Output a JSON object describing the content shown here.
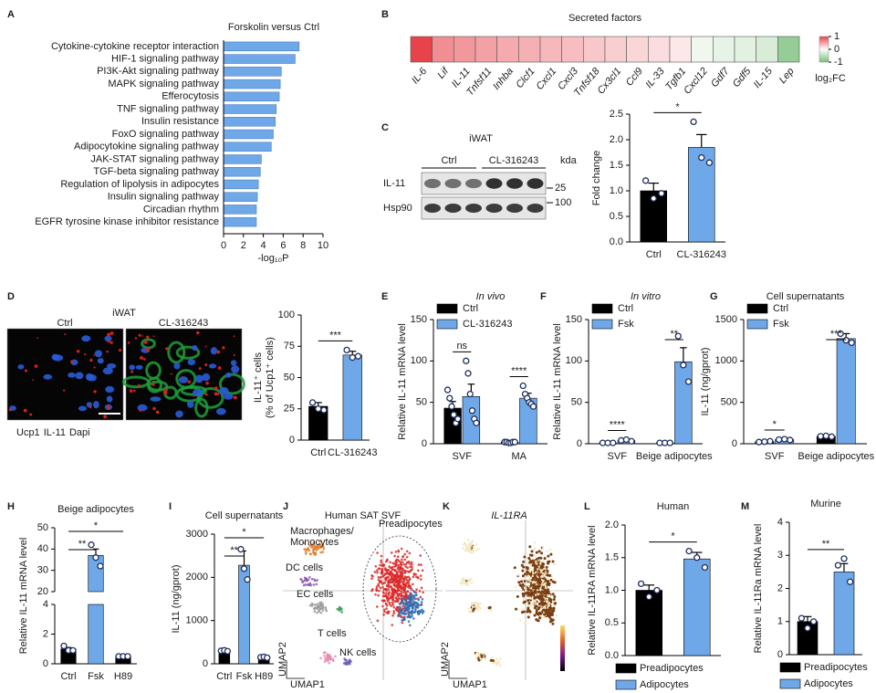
{
  "chart_data": [
    {
      "panel": "A",
      "type": "hbar",
      "title": "Forskolin versus Ctrl",
      "categories": [
        "Cytokine-cytokine receptor interaction",
        "HIF-1 signaling pathway",
        "PI3K-Akt signaling pathway",
        "MAPK signaling pathway",
        "Efferocytosis",
        "TNF signaling pathway",
        "Insulin resistance",
        "FoxO signaling pathway",
        "Adipocytokine signaling pathway",
        "JAK-STAT signaling pathway",
        "TGF-beta signaling pathway",
        "Regulation of lipolysis in adipocytes",
        "Insulin signaling pathway",
        "Circadian rhythm",
        "EGFR tyrosine kinase inhibitor resistance"
      ],
      "values": [
        7.6,
        7.2,
        5.8,
        5.7,
        5.6,
        5.3,
        5.2,
        5.0,
        4.8,
        3.8,
        3.7,
        3.5,
        3.4,
        3.3,
        3.3
      ],
      "color": "#6fa8e8",
      "label_colors": [
        "#e3211c",
        "#1a1a1a",
        "#1a1a1a",
        "#1a1a1a",
        "#1a1a1a",
        "#1a1a1a",
        "#1a1a1a",
        "#1a1a1a",
        "#1a1a1a",
        "#1a1a1a",
        "#1a1a1a",
        "#1a1a1a",
        "#1a1a1a",
        "#1a1a1a",
        "#1a1a1a"
      ],
      "xlabel": "-log₁₀P",
      "xlim": [
        0,
        10
      ],
      "xticks": [
        0,
        2,
        4,
        6,
        8,
        10
      ]
    },
    {
      "panel": "B",
      "type": "heatmap",
      "title": "Secreted factors",
      "categories": [
        "IL-6",
        "Lif",
        "IL-11",
        "Tnfsf11",
        "Inhba",
        "Clcf1",
        "Cxcl1",
        "Cxcl3",
        "Tnfsf18",
        "Cx3cl1",
        "Ccl9",
        "IL-33",
        "Tgfb1",
        "Cxcl12",
        "Gdf7",
        "Gdf5",
        "IL-15",
        "Lep"
      ],
      "values": [
        1.0,
        0.6,
        0.55,
        0.5,
        0.45,
        0.42,
        0.38,
        0.35,
        0.3,
        0.26,
        0.22,
        0.18,
        0.12,
        -0.12,
        -0.18,
        -0.22,
        -0.3,
        -0.8
      ],
      "label_colors": [
        "#1a1a1a",
        "#1a1a1a",
        "#e3211c",
        "#1a1a1a",
        "#1a1a1a",
        "#1a1a1a",
        "#1a1a1a",
        "#1a1a1a",
        "#1a1a1a",
        "#1a1a1a",
        "#1a1a1a",
        "#1a1a1a",
        "#1a1a1a",
        "#1a1a1a",
        "#1a1a1a",
        "#1a1a1a",
        "#1a1a1a",
        "#1a1a1a"
      ],
      "colors": [
        "#7cbf7a",
        "#ffffff",
        "#e8434b"
      ],
      "clim": [
        -1,
        1
      ],
      "cticks": [
        1,
        0,
        -1
      ],
      "colorbar_label": "log₂FC"
    },
    {
      "panel": "C",
      "type": "bar",
      "blot": {
        "title": "iWAT",
        "groups": [
          "Ctrl",
          "CL-316243"
        ],
        "unit": "kda",
        "rows": [
          "IL-11",
          "Hsp90"
        ],
        "markers": [
          25,
          100
        ]
      },
      "ylabel": "Fold change",
      "categories": [
        "Ctrl",
        "CL-316243"
      ],
      "colors": [
        "#000000",
        "#6fa8e8"
      ],
      "values": [
        1.0,
        1.85
      ],
      "errors": [
        0.15,
        0.25
      ],
      "points": [
        [
          1.2,
          0.85,
          0.95
        ],
        [
          2.35,
          1.65,
          1.55
        ]
      ],
      "ylim": [
        0,
        2.5
      ],
      "yticks": [
        {
          "value": 0,
          "label": "0.0"
        },
        0.5,
        {
          "value": 1,
          "label": "1.0"
        },
        1.5,
        {
          "value": 2,
          "label": "2.0"
        },
        2.5
      ],
      "annotations": [
        "*"
      ]
    },
    {
      "panel": "D",
      "type": "bar",
      "image": {
        "title": "iWAT",
        "groups": [
          "Ctrl",
          "CL-316243"
        ],
        "stains": [
          "Ucp1",
          "IL-11",
          "Dapi"
        ],
        "stain_colors": [
          "#1f9e3a",
          "#d8201c",
          "#2a5bd7"
        ]
      },
      "ylabel": [
        "IL-11⁺ cells",
        "(% of Ucp1⁺ cells)"
      ],
      "categories": [
        "Ctrl",
        "CL-316243"
      ],
      "colors": [
        "#000000",
        "#6fa8e8"
      ],
      "values": [
        27,
        68
      ],
      "errors": [
        3,
        3
      ],
      "points": [
        [
          30,
          25,
          24
        ],
        [
          72,
          66,
          67
        ]
      ],
      "ylim": [
        0,
        100
      ],
      "yticks": [
        0,
        25,
        50,
        75,
        100
      ],
      "annotations": [
        "***"
      ]
    },
    {
      "panel": "E",
      "type": "grouped_bar",
      "title": "In vivo",
      "title_italic": true,
      "legend": "top-left",
      "ylabel": "Relative IL-11 mRNA level",
      "categories": [
        "SVF",
        "MA"
      ],
      "series": [
        {
          "name": "Ctrl",
          "color": "#000000",
          "values": [
            43,
            2
          ],
          "errors": [
            8,
            1
          ],
          "points": [
            [
              65,
              55,
              45,
              35,
              25,
              30
            ],
            [
              2,
              2,
              1,
              1,
              2,
              2
            ]
          ]
        },
        {
          "name": "CL-316243",
          "color": "#6fa8e8",
          "values": [
            57,
            55
          ],
          "errors": [
            15,
            6
          ],
          "points": [
            [
              100,
              85,
              60,
              40,
              30,
              25
            ],
            [
              70,
              60,
              55,
              50,
              48,
              45
            ]
          ]
        }
      ],
      "ylim": [
        0,
        150
      ],
      "yticks": [
        0,
        50,
        100,
        150
      ],
      "annotations": [
        "ns",
        "****"
      ]
    },
    {
      "panel": "F",
      "type": "grouped_bar",
      "title": "In vitro",
      "title_italic": true,
      "legend": "top-left",
      "ylabel": "Relative IL-11 mRNA level",
      "categories": [
        "SVF",
        "Beige adipocytes"
      ],
      "series": [
        {
          "name": "Ctrl",
          "color": "#000000",
          "values": [
            1,
            1
          ],
          "errors": [
            0.2,
            0.2
          ],
          "points": [
            [
              1,
              1,
              1
            ],
            [
              1,
              1,
              1
            ]
          ]
        },
        {
          "name": "Fsk",
          "color": "#6fa8e8",
          "values": [
            4,
            99
          ],
          "errors": [
            0.6,
            17
          ],
          "points": [
            [
              4,
              5,
              3
            ],
            [
              130,
              95,
              75
            ]
          ]
        }
      ],
      "ylim": [
        0,
        150
      ],
      "yticks": [
        0,
        50,
        100,
        150
      ],
      "annotations": [
        "****",
        "**"
      ]
    },
    {
      "panel": "G",
      "type": "grouped_bar",
      "title": "Cell supernatants",
      "legend": "top-left",
      "ylabel": "IL-11 (ng/gprot)",
      "categories": [
        "SVF",
        "Beige adipocytes"
      ],
      "series": [
        {
          "name": "Ctrl",
          "color": "#000000",
          "values": [
            25,
            90
          ],
          "errors": [
            5,
            5
          ],
          "points": [
            [
              20,
              25,
              30
            ],
            [
              90,
              95,
              85
            ]
          ]
        },
        {
          "name": "Fsk",
          "color": "#6fa8e8",
          "values": [
            50,
            1270
          ],
          "errors": [
            5,
            60
          ],
          "points": [
            [
              50,
              55,
              45
            ],
            [
              1330,
              1250,
              1220
            ]
          ]
        }
      ],
      "ylim": [
        0,
        1500
      ],
      "yticks": [
        0,
        500,
        1000,
        1500
      ],
      "annotations": [
        "*",
        "***"
      ]
    },
    {
      "panel": "H",
      "type": "bar",
      "title": "Beige adipocytes",
      "ylabel": "Relative IL-11 mRNA level",
      "categories": [
        "Ctrl",
        "Fsk",
        "H89"
      ],
      "colors": [
        "#000000",
        "#6fa8e8",
        "#000000"
      ],
      "values": [
        1,
        37,
        0.5
      ],
      "errors": [
        0.1,
        3,
        0.05
      ],
      "points": [
        [
          1.2,
          0.9,
          0.9
        ],
        [
          42,
          36,
          32
        ],
        [
          0.5,
          0.5,
          0.5
        ]
      ],
      "ylim": [
        0,
        50
      ],
      "y_break": [
        4,
        20
      ],
      "yticks": [
        0,
        2,
        4,
        20,
        30,
        40,
        50
      ],
      "annotations": [
        "**",
        "*"
      ]
    },
    {
      "panel": "I",
      "type": "bar",
      "title": "Cell supernatants",
      "ylabel": "IL-11 (ng/gprot)",
      "categories": [
        "Ctrl",
        "Fsk",
        "H89"
      ],
      "colors": [
        "#000000",
        "#6fa8e8",
        "#000000"
      ],
      "values": [
        300,
        2280,
        150
      ],
      "errors": [
        20,
        330,
        15
      ],
      "points": [
        [
          300,
          310,
          290
        ],
        [
          2650,
          2200,
          1950
        ],
        [
          150,
          160,
          140
        ]
      ],
      "ylim": [
        0,
        3000
      ],
      "yticks": [
        0,
        1000,
        2000,
        3000
      ],
      "annotations": [
        "**",
        "*"
      ]
    },
    {
      "panel": "J",
      "type": "umap",
      "title": "Human SAT SVF",
      "clusters": [
        "Macrophages/ Monocytes",
        "Preadipocytes",
        "DC cells",
        "EC cells",
        "T cells",
        "NK cells"
      ],
      "axes": [
        "UMAP1",
        "UMAP2"
      ]
    },
    {
      "panel": "K",
      "type": "umap",
      "title": "IL-11RA",
      "title_italic": true,
      "axes": [
        "UMAP1",
        "UMAP2"
      ]
    },
    {
      "panel": "L",
      "type": "bar",
      "title": "Human",
      "legend": "bottom",
      "ylabel": "Relative IL-11RA mRNA level",
      "categories": [
        "Preadipocytes",
        "Adipocytes"
      ],
      "colors": [
        "#000000",
        "#6fa8e8"
      ],
      "values": [
        1.0,
        1.48
      ],
      "errors": [
        0.08,
        0.1
      ],
      "points": [
        [
          1.1,
          0.9,
          1.0
        ],
        [
          1.6,
          1.5,
          1.35
        ]
      ],
      "ylim": [
        0,
        2
      ],
      "yticks": [
        {
          "value": 0,
          "label": "0.0"
        },
        0.5,
        {
          "value": 1,
          "label": "1.0"
        },
        1.5,
        {
          "value": 2,
          "label": "2.0"
        }
      ],
      "annotations": [
        "*"
      ]
    },
    {
      "panel": "M",
      "type": "bar",
      "title": "Murine",
      "legend": "bottom",
      "ylabel": "Relative IL-11Ra mRNA level",
      "categories": [
        "Preadipocytes",
        "Adipocytes"
      ],
      "colors": [
        "#000000",
        "#6fa8e8"
      ],
      "values": [
        1.0,
        2.5
      ],
      "errors": [
        0.15,
        0.25
      ],
      "points": [
        [
          1.1,
          0.8,
          1.0
        ],
        [
          2.7,
          2.9,
          2.2
        ]
      ],
      "ylim": [
        0,
        4
      ],
      "yticks": [
        0,
        1,
        2,
        3,
        4
      ],
      "annotations": [
        "**"
      ]
    }
  ]
}
